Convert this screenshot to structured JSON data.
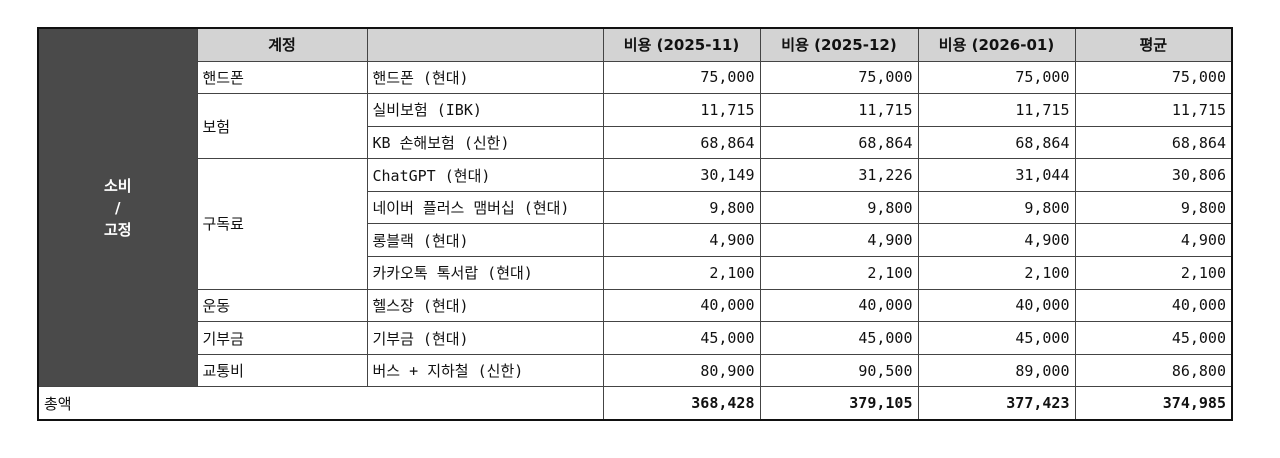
{
  "headers": {
    "account": "계정",
    "item": "",
    "cost1": "비용 (2025-11)",
    "cost2": "비용 (2025-12)",
    "cost3": "비용 (2026-01)",
    "avg": "평균"
  },
  "group": {
    "line1": "소비",
    "line2": "/",
    "line3": "고정"
  },
  "categories": [
    "핸드폰",
    "보험",
    "구독료",
    "운동",
    "기부금",
    "교통비"
  ],
  "rows": [
    {
      "item": "핸드폰 (현대)",
      "values": [
        "75,000",
        "75,000",
        "75,000",
        "75,000"
      ]
    },
    {
      "item": "실비보험 (IBK)",
      "values": [
        "11,715",
        "11,715",
        "11,715",
        "11,715"
      ]
    },
    {
      "item": "KB 손해보험 (신한)",
      "values": [
        "68,864",
        "68,864",
        "68,864",
        "68,864"
      ]
    },
    {
      "item": "ChatGPT (현대)",
      "values": [
        "30,149",
        "31,226",
        "31,044",
        "30,806"
      ]
    },
    {
      "item": "네이버 플러스 맴버십 (현대)",
      "values": [
        "9,800",
        "9,800",
        "9,800",
        "9,800"
      ]
    },
    {
      "item": "롱블랙 (현대)",
      "values": [
        "4,900",
        "4,900",
        "4,900",
        "4,900"
      ]
    },
    {
      "item": "카카오톡 톡서랍 (현대)",
      "values": [
        "2,100",
        "2,100",
        "2,100",
        "2,100"
      ]
    },
    {
      "item": "헬스장 (현대)",
      "values": [
        "40,000",
        "40,000",
        "40,000",
        "40,000"
      ]
    },
    {
      "item": "기부금 (현대)",
      "values": [
        "45,000",
        "45,000",
        "45,000",
        "45,000"
      ]
    },
    {
      "item": "버스 + 지하철 (신한)",
      "values": [
        "80,900",
        "90,500",
        "89,000",
        "86,800"
      ]
    }
  ],
  "total": {
    "label": "총액",
    "values": [
      "368,428",
      "379,105",
      "377,423",
      "374,985"
    ]
  }
}
